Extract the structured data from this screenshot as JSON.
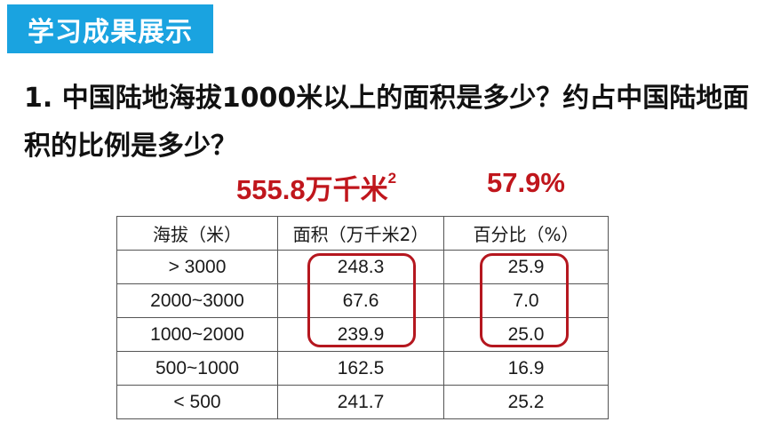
{
  "header": {
    "badge": "学习成果展示"
  },
  "question": {
    "text": "1. 中国陆地海拔1000米以上的面积是多少？约占中国陆地面积的比例是多少？"
  },
  "answers": {
    "area": "555.8万千米",
    "area_sup": "2",
    "percent": "57.9%"
  },
  "table": {
    "headers": [
      "海拔（米）",
      "面积（万千米2）",
      "百分比（%）"
    ],
    "rows": [
      [
        "> 3000",
        "248.3",
        "25.9"
      ],
      [
        "2000~3000",
        "67.6",
        "7.0"
      ],
      [
        "1000~2000",
        "239.9",
        "25.0"
      ],
      [
        "500~1000",
        "162.5",
        "16.9"
      ],
      [
        "< 500",
        "241.7",
        "25.2"
      ]
    ]
  },
  "colors": {
    "badge_bg": "#1aa3e0",
    "answer_red": "#c0161c",
    "highlight_border": "#b5171f"
  }
}
